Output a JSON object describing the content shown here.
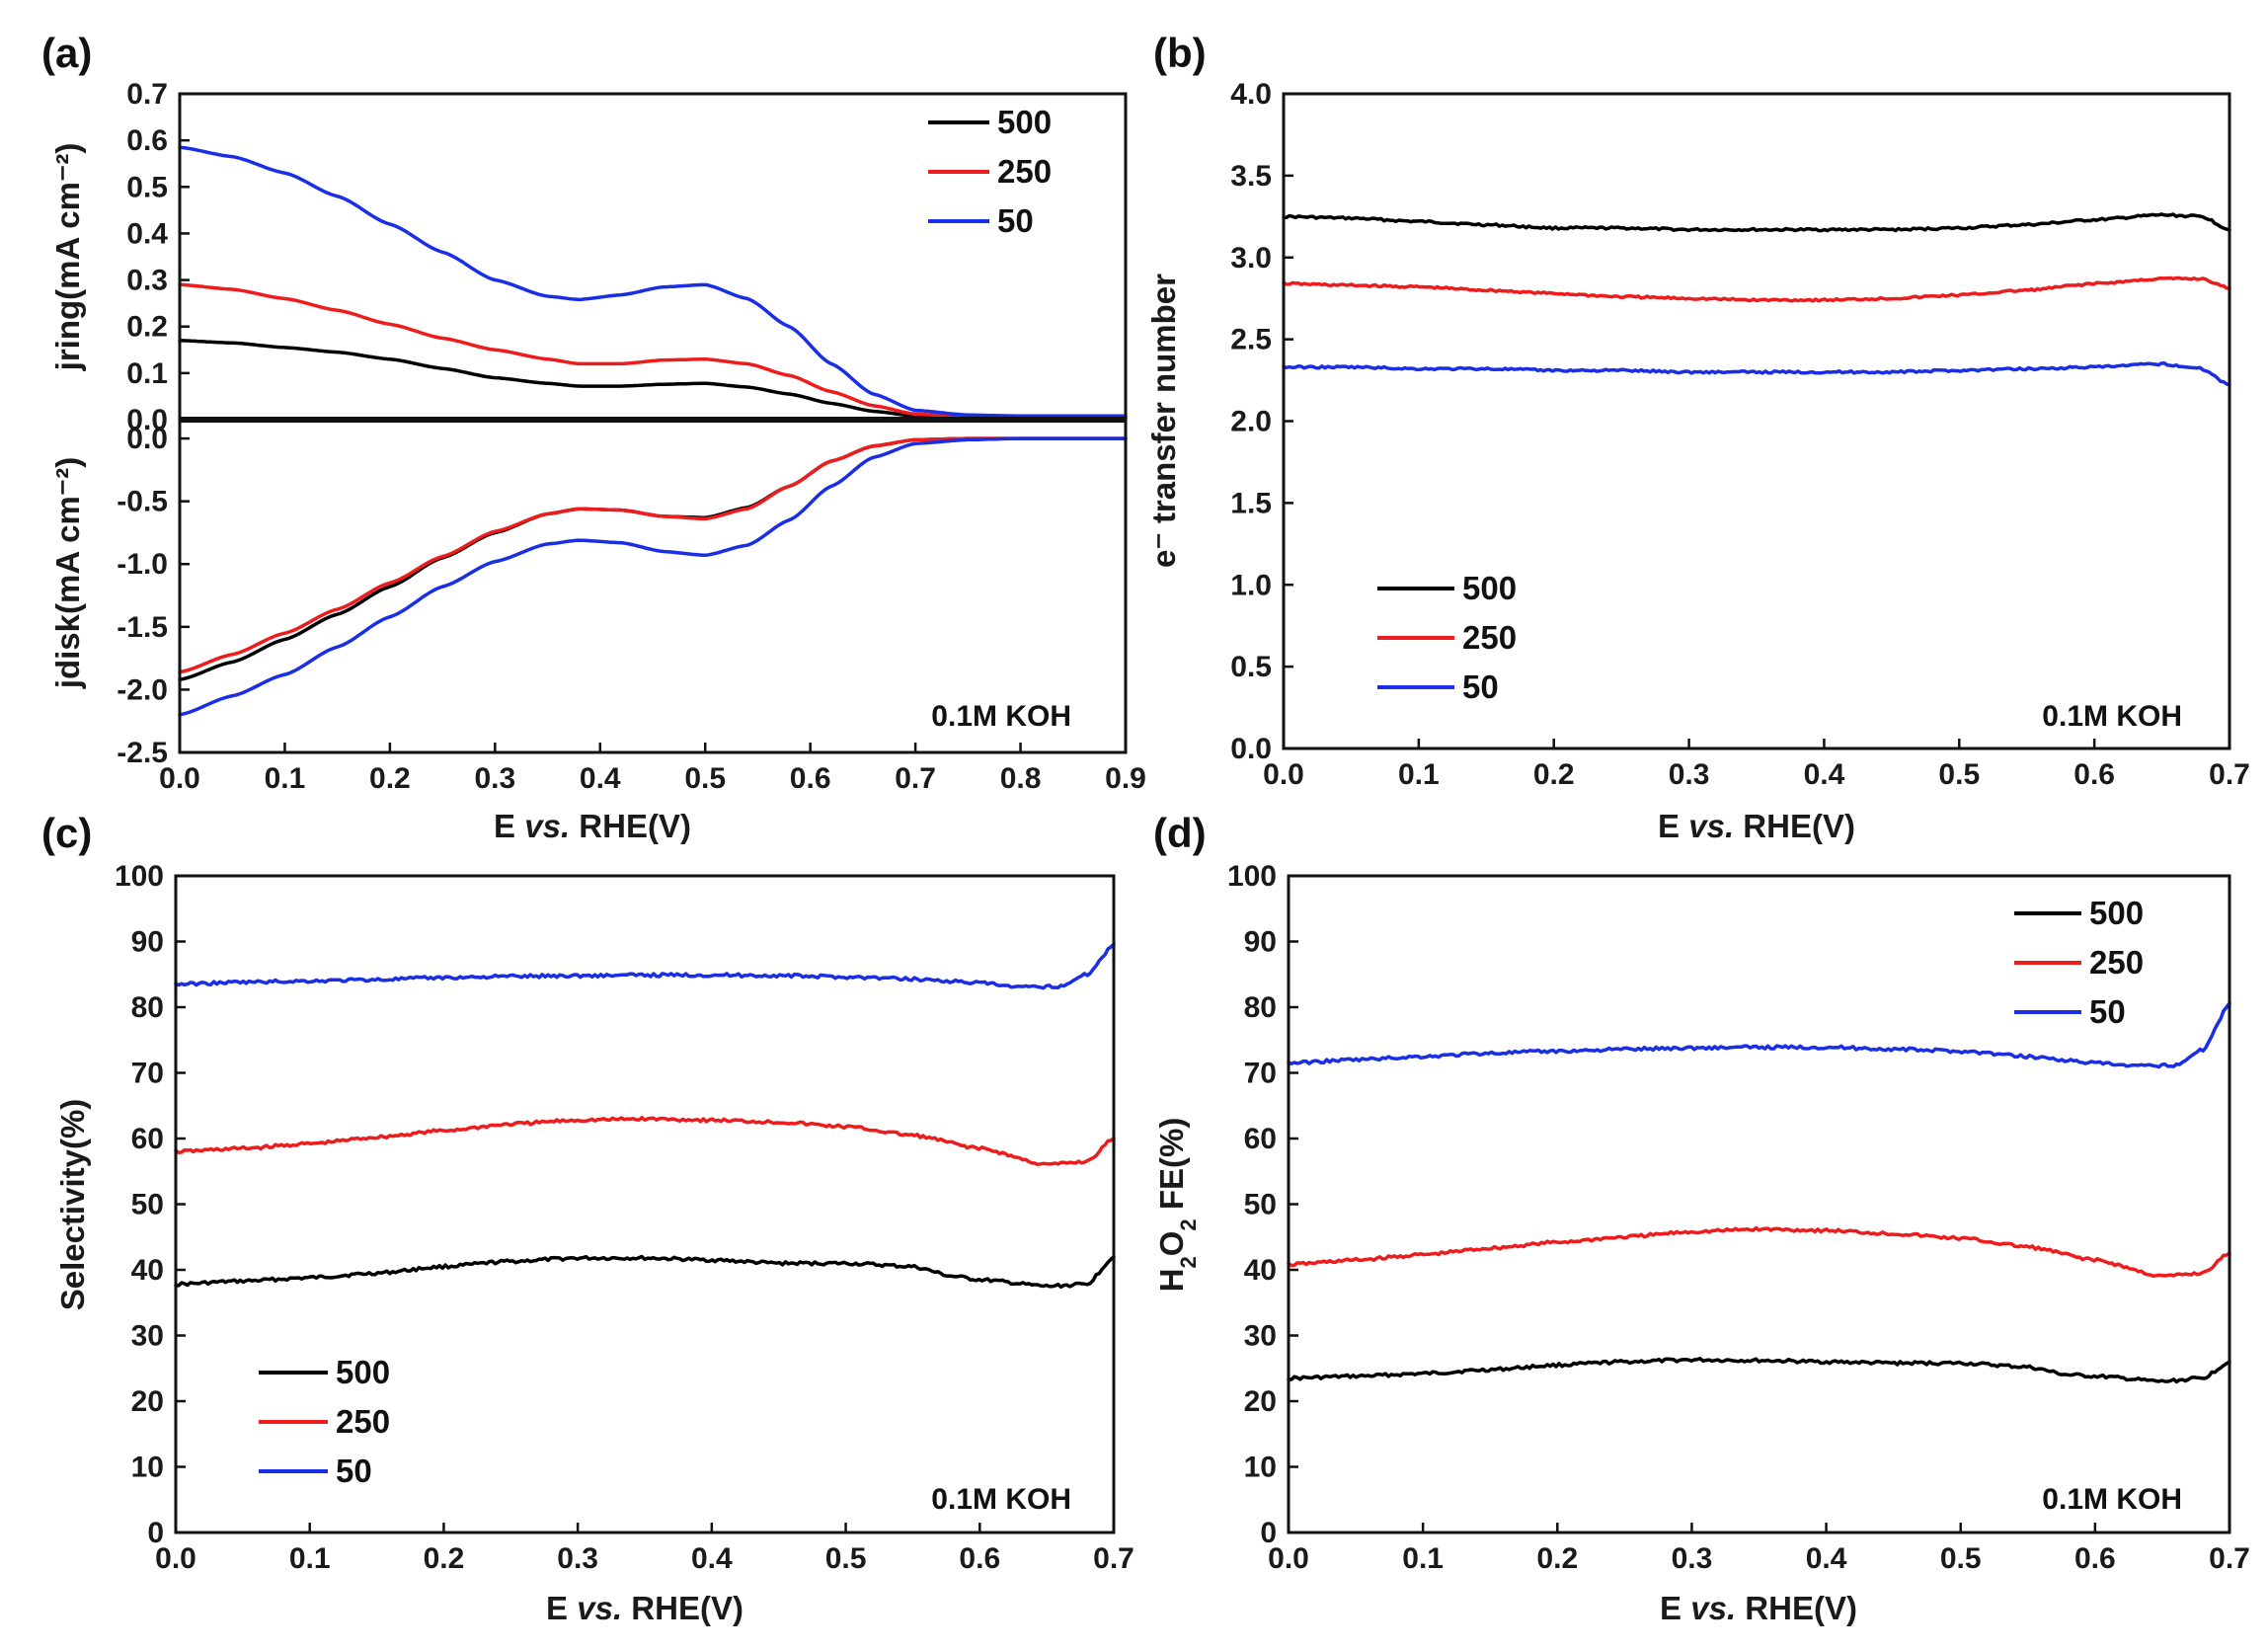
{
  "figure": {
    "colors": {
      "s500": "#000000",
      "s250": "#ee1c1c",
      "s50": "#1a2ee6"
    }
  },
  "chart_data": [
    {
      "id": "a",
      "type": "line",
      "panel_label": "(a)",
      "xlabel": "E vs. RHE(V)",
      "xlim": [
        0.0,
        0.9
      ],
      "xticks": [
        "0.0",
        "0.1",
        "0.2",
        "0.3",
        "0.4",
        "0.5",
        "0.6",
        "0.7",
        "0.8",
        "0.9"
      ],
      "annotation": "0.1M KOH",
      "legend": {
        "placement": "top-right of upper subplot",
        "entries": [
          "500",
          "250",
          "50"
        ]
      },
      "upper": {
        "ylabel": "jring(mA cm⁻²)",
        "ylim": [
          0.0,
          0.7
        ],
        "yticks": [
          "0.0",
          "0.1",
          "0.2",
          "0.3",
          "0.4",
          "0.5",
          "0.6",
          "0.7"
        ],
        "series": [
          {
            "name": "500",
            "color": "#000000",
            "x": [
              0.0,
              0.05,
              0.1,
              0.15,
              0.2,
              0.25,
              0.3,
              0.35,
              0.38,
              0.42,
              0.46,
              0.5,
              0.54,
              0.58,
              0.62,
              0.66,
              0.7,
              0.75,
              0.8,
              0.9
            ],
            "y": [
              0.17,
              0.165,
              0.155,
              0.145,
              0.13,
              0.11,
              0.09,
              0.078,
              0.072,
              0.072,
              0.076,
              0.078,
              0.07,
              0.055,
              0.035,
              0.018,
              0.008,
              0.004,
              0.003,
              0.003
            ]
          },
          {
            "name": "250",
            "color": "#ee1c1c",
            "x": [
              0.0,
              0.05,
              0.1,
              0.15,
              0.2,
              0.25,
              0.3,
              0.35,
              0.38,
              0.42,
              0.46,
              0.5,
              0.54,
              0.58,
              0.62,
              0.66,
              0.7,
              0.75,
              0.8,
              0.9
            ],
            "y": [
              0.29,
              0.28,
              0.26,
              0.235,
              0.205,
              0.175,
              0.15,
              0.13,
              0.12,
              0.12,
              0.128,
              0.13,
              0.12,
              0.095,
              0.06,
              0.03,
              0.012,
              0.006,
              0.004,
              0.004
            ]
          },
          {
            "name": "50",
            "color": "#1a2ee6",
            "x": [
              0.0,
              0.05,
              0.1,
              0.15,
              0.2,
              0.25,
              0.3,
              0.35,
              0.38,
              0.42,
              0.46,
              0.5,
              0.54,
              0.58,
              0.62,
              0.66,
              0.7,
              0.75,
              0.8,
              0.9
            ],
            "y": [
              0.585,
              0.565,
              0.53,
              0.48,
              0.42,
              0.36,
              0.3,
              0.265,
              0.258,
              0.268,
              0.285,
              0.29,
              0.26,
              0.2,
              0.12,
              0.055,
              0.02,
              0.01,
              0.008,
              0.008
            ]
          }
        ]
      },
      "lower": {
        "ylabel": "jdisk(mA cm⁻²)",
        "ylim": [
          -2.5,
          0.15
        ],
        "yticks": [
          "0.0",
          "-0.5",
          "-1.0",
          "-1.5",
          "-2.0",
          "-2.5"
        ],
        "series": [
          {
            "name": "500",
            "color": "#000000",
            "x": [
              0.0,
              0.05,
              0.1,
              0.15,
              0.2,
              0.25,
              0.3,
              0.35,
              0.38,
              0.42,
              0.46,
              0.5,
              0.54,
              0.58,
              0.62,
              0.66,
              0.7,
              0.75,
              0.8,
              0.9
            ],
            "y": [
              -1.92,
              -1.78,
              -1.6,
              -1.4,
              -1.18,
              -0.95,
              -0.75,
              -0.6,
              -0.56,
              -0.57,
              -0.62,
              -0.63,
              -0.55,
              -0.38,
              -0.18,
              -0.06,
              -0.01,
              0.0,
              0.0,
              0.0
            ]
          },
          {
            "name": "250",
            "color": "#ee1c1c",
            "x": [
              0.0,
              0.05,
              0.1,
              0.15,
              0.2,
              0.25,
              0.3,
              0.35,
              0.38,
              0.42,
              0.46,
              0.5,
              0.54,
              0.58,
              0.62,
              0.66,
              0.7,
              0.75,
              0.8,
              0.9
            ],
            "y": [
              -1.86,
              -1.72,
              -1.55,
              -1.36,
              -1.15,
              -0.94,
              -0.74,
              -0.6,
              -0.56,
              -0.57,
              -0.62,
              -0.64,
              -0.56,
              -0.38,
              -0.18,
              -0.06,
              -0.01,
              0.0,
              0.0,
              0.0
            ]
          },
          {
            "name": "50",
            "color": "#1a2ee6",
            "x": [
              0.0,
              0.05,
              0.1,
              0.15,
              0.2,
              0.25,
              0.3,
              0.35,
              0.38,
              0.42,
              0.46,
              0.5,
              0.54,
              0.58,
              0.62,
              0.66,
              0.7,
              0.75,
              0.8,
              0.9
            ],
            "y": [
              -2.2,
              -2.05,
              -1.88,
              -1.66,
              -1.42,
              -1.18,
              -0.98,
              -0.84,
              -0.81,
              -0.83,
              -0.9,
              -0.93,
              -0.85,
              -0.65,
              -0.38,
              -0.15,
              -0.04,
              -0.01,
              0.0,
              0.0
            ]
          }
        ]
      }
    },
    {
      "id": "b",
      "type": "line",
      "panel_label": "(b)",
      "xlabel": "E vs. RHE(V)",
      "ylabel": "e⁻ transfer number",
      "xlim": [
        0.0,
        0.7
      ],
      "ylim": [
        0.0,
        4.0
      ],
      "xticks": [
        "0.0",
        "0.1",
        "0.2",
        "0.3",
        "0.4",
        "0.5",
        "0.6",
        "0.7"
      ],
      "yticks": [
        "0.0",
        "0.5",
        "1.0",
        "1.5",
        "2.0",
        "2.5",
        "3.0",
        "3.5",
        "4.0"
      ],
      "annotation": "0.1M KOH",
      "legend": {
        "placement": "lower-left",
        "entries": [
          "500",
          "250",
          "50"
        ]
      },
      "series": [
        {
          "name": "500",
          "color": "#000000",
          "x": [
            0.0,
            0.05,
            0.1,
            0.15,
            0.2,
            0.25,
            0.3,
            0.35,
            0.4,
            0.45,
            0.5,
            0.55,
            0.6,
            0.65,
            0.68,
            0.7
          ],
          "y": [
            3.25,
            3.24,
            3.22,
            3.2,
            3.18,
            3.18,
            3.17,
            3.17,
            3.17,
            3.17,
            3.18,
            3.2,
            3.23,
            3.26,
            3.25,
            3.17
          ]
        },
        {
          "name": "250",
          "color": "#ee1c1c",
          "x": [
            0.0,
            0.05,
            0.1,
            0.15,
            0.2,
            0.25,
            0.3,
            0.35,
            0.4,
            0.45,
            0.5,
            0.55,
            0.6,
            0.65,
            0.68,
            0.7
          ],
          "y": [
            2.84,
            2.83,
            2.82,
            2.8,
            2.78,
            2.76,
            2.75,
            2.74,
            2.74,
            2.75,
            2.77,
            2.8,
            2.84,
            2.87,
            2.87,
            2.81
          ]
        },
        {
          "name": "50",
          "color": "#1a2ee6",
          "x": [
            0.0,
            0.05,
            0.1,
            0.15,
            0.2,
            0.25,
            0.3,
            0.35,
            0.4,
            0.45,
            0.5,
            0.55,
            0.6,
            0.65,
            0.68,
            0.7
          ],
          "y": [
            2.33,
            2.33,
            2.32,
            2.32,
            2.31,
            2.31,
            2.3,
            2.3,
            2.3,
            2.3,
            2.31,
            2.32,
            2.33,
            2.35,
            2.32,
            2.22
          ]
        }
      ]
    },
    {
      "id": "c",
      "type": "line",
      "panel_label": "(c)",
      "xlabel": "E vs. RHE(V)",
      "ylabel": "Selectivity(%)",
      "xlim": [
        0.0,
        0.7
      ],
      "ylim": [
        0,
        100
      ],
      "xticks": [
        "0.0",
        "0.1",
        "0.2",
        "0.3",
        "0.4",
        "0.5",
        "0.6",
        "0.7"
      ],
      "yticks": [
        "0",
        "10",
        "20",
        "30",
        "40",
        "50",
        "60",
        "70",
        "80",
        "90",
        "100"
      ],
      "annotation": "0.1M KOH",
      "legend": {
        "placement": "lower-left",
        "entries": [
          "500",
          "250",
          "50"
        ]
      },
      "series": [
        {
          "name": "500",
          "color": "#000000",
          "x": [
            0.0,
            0.05,
            0.1,
            0.15,
            0.2,
            0.25,
            0.3,
            0.35,
            0.4,
            0.45,
            0.5,
            0.55,
            0.58,
            0.6,
            0.65,
            0.68,
            0.7
          ],
          "y": [
            37.8,
            38.3,
            38.8,
            39.5,
            40.5,
            41.3,
            41.8,
            41.8,
            41.5,
            41.0,
            41.0,
            40.5,
            39.0,
            38.5,
            37.5,
            37.8,
            42.0
          ]
        },
        {
          "name": "250",
          "color": "#ee1c1c",
          "x": [
            0.0,
            0.05,
            0.1,
            0.15,
            0.2,
            0.25,
            0.3,
            0.35,
            0.4,
            0.45,
            0.5,
            0.55,
            0.6,
            0.65,
            0.68,
            0.7
          ],
          "y": [
            58.0,
            58.5,
            59.2,
            60.2,
            61.2,
            62.2,
            62.8,
            63.0,
            62.8,
            62.5,
            61.8,
            60.5,
            58.5,
            56.0,
            56.5,
            60.0
          ]
        },
        {
          "name": "50",
          "color": "#1a2ee6",
          "x": [
            0.0,
            0.05,
            0.1,
            0.15,
            0.2,
            0.25,
            0.3,
            0.35,
            0.4,
            0.45,
            0.5,
            0.55,
            0.6,
            0.63,
            0.66,
            0.68,
            0.7
          ],
          "y": [
            83.5,
            83.8,
            84.0,
            84.2,
            84.5,
            84.7,
            84.8,
            84.9,
            84.9,
            84.8,
            84.6,
            84.3,
            83.7,
            83.0,
            83.2,
            85.0,
            89.5
          ]
        }
      ]
    },
    {
      "id": "d",
      "type": "line",
      "panel_label": "(d)",
      "xlabel": "E vs. RHE(V)",
      "ylabel": "H2O2 FE(%)",
      "xlim": [
        0.0,
        0.7
      ],
      "ylim": [
        0,
        100
      ],
      "xticks": [
        "0.0",
        "0.1",
        "0.2",
        "0.3",
        "0.4",
        "0.5",
        "0.6",
        "0.7"
      ],
      "yticks": [
        "0",
        "10",
        "20",
        "30",
        "40",
        "50",
        "60",
        "70",
        "80",
        "90",
        "100"
      ],
      "annotation": "0.1M KOH",
      "legend": {
        "placement": "top-right",
        "entries": [
          "500",
          "250",
          "50"
        ]
      },
      "series": [
        {
          "name": "500",
          "color": "#000000",
          "x": [
            0.0,
            0.05,
            0.1,
            0.15,
            0.2,
            0.25,
            0.3,
            0.35,
            0.4,
            0.45,
            0.5,
            0.55,
            0.58,
            0.6,
            0.65,
            0.68,
            0.7
          ],
          "y": [
            23.5,
            23.8,
            24.2,
            24.8,
            25.5,
            26.0,
            26.3,
            26.2,
            26.0,
            25.8,
            25.8,
            25.2,
            24.0,
            23.8,
            23.0,
            23.5,
            26.0
          ]
        },
        {
          "name": "250",
          "color": "#ee1c1c",
          "x": [
            0.0,
            0.05,
            0.1,
            0.15,
            0.2,
            0.25,
            0.3,
            0.35,
            0.4,
            0.45,
            0.5,
            0.55,
            0.6,
            0.65,
            0.68,
            0.7
          ],
          "y": [
            40.8,
            41.5,
            42.3,
            43.3,
            44.2,
            45.0,
            45.8,
            46.2,
            46.0,
            45.5,
            44.8,
            43.5,
            41.5,
            39.0,
            39.5,
            42.5
          ]
        },
        {
          "name": "50",
          "color": "#1a2ee6",
          "x": [
            0.0,
            0.05,
            0.1,
            0.15,
            0.2,
            0.25,
            0.3,
            0.35,
            0.4,
            0.45,
            0.5,
            0.55,
            0.6,
            0.63,
            0.66,
            0.68,
            0.7
          ],
          "y": [
            71.5,
            72.0,
            72.5,
            73.0,
            73.3,
            73.6,
            73.8,
            73.9,
            73.9,
            73.6,
            73.3,
            72.5,
            71.5,
            71.0,
            71.2,
            73.5,
            80.5
          ]
        }
      ]
    }
  ]
}
